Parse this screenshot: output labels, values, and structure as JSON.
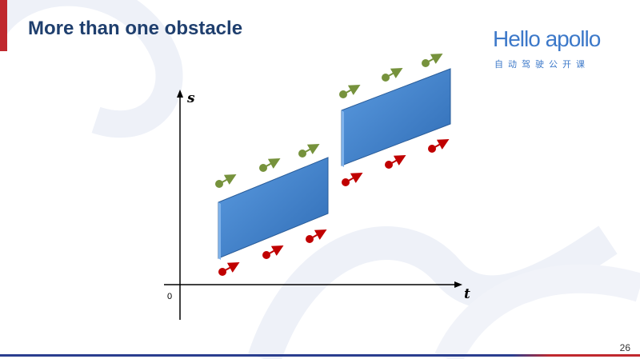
{
  "slide": {
    "title": "More than one obstacle",
    "page_number": "26"
  },
  "logo": {
    "name": "Hello apollo",
    "subtitle": "自动驾驶公开课"
  },
  "diagram": {
    "y_axis_label": "s",
    "x_axis_label": "t",
    "origin_label": "0"
  },
  "colors": {
    "title": "#1f3f6e",
    "accent_red": "#c0282e",
    "obstacle_blue": "#3d7fc9",
    "upper_arrow_green": "#76923c",
    "lower_arrow_red": "#c00000"
  }
}
